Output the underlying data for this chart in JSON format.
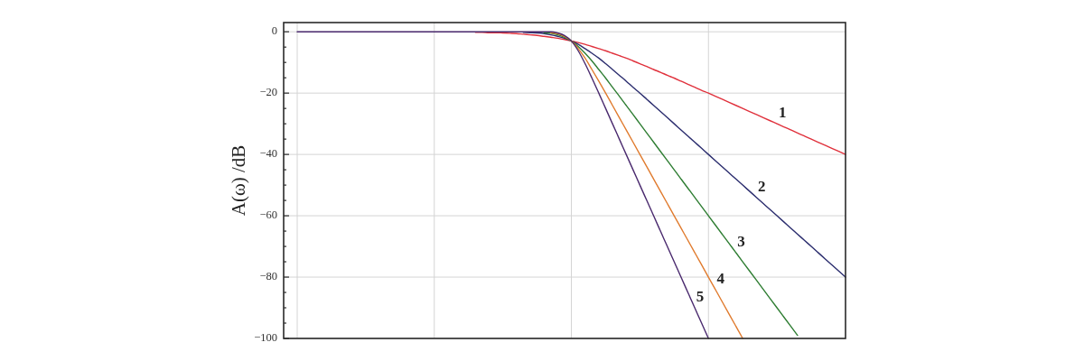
{
  "chart_data": {
    "type": "line",
    "ylabel": "A(ω) /dB",
    "categories": [
      null,
      null,
      null,
      null,
      null,
      null,
      null,
      null,
      null,
      null,
      null,
      null,
      null,
      null,
      null,
      null,
      null,
      null,
      null,
      null,
      null,
      null,
      null,
      null,
      null,
      null,
      null,
      null,
      null,
      null,
      null,
      null,
      null,
      null,
      null,
      null,
      null,
      null,
      null,
      null,
      null,
      null,
      null,
      null,
      null,
      null,
      null,
      null,
      null,
      null,
      null,
      null,
      null,
      null,
      null,
      null,
      null,
      null,
      null,
      null,
      null,
      null,
      null,
      null,
      null,
      null,
      null,
      null,
      null,
      null,
      null,
      null,
      null,
      null,
      null,
      null,
      null,
      null,
      null,
      null,
      null
    ],
    "ylim": [
      -100,
      3
    ],
    "yticks": [
      0,
      {
        "value": -5,
        "label": null
      },
      {
        "value": -10,
        "label": null
      },
      {
        "value": -15,
        "label": null
      },
      -20,
      {
        "value": -25,
        "label": null
      },
      {
        "value": -30,
        "label": null
      },
      {
        "value": -35,
        "label": null
      },
      -40,
      {
        "value": -45,
        "label": null
      },
      {
        "value": -50,
        "label": null
      },
      {
        "value": -55,
        "label": null
      },
      -60,
      {
        "value": -65,
        "label": null
      },
      {
        "value": -70,
        "label": null
      },
      {
        "value": -75,
        "label": null
      },
      -80,
      {
        "value": -85,
        "label": null
      },
      {
        "value": -90,
        "label": null
      },
      {
        "value": -95,
        "label": null
      },
      -100
    ],
    "grid": true,
    "series": [
      {
        "name": "1",
        "color": "#e0313c",
        "values": [
          null,
          null,
          null,
          null,
          null,
          null,
          null,
          null,
          null,
          null,
          null,
          null,
          null,
          null,
          null,
          null,
          null,
          null,
          null,
          null,
          null,
          null,
          null,
          null,
          null,
          null,
          -0.2,
          -0.2,
          -0.3,
          -0.3,
          -0.4,
          -0.5,
          -0.6,
          -0.8,
          -1,
          -1.2,
          -1.5,
          -1.8,
          -2.1,
          -2.5,
          -3,
          -3.5,
          -4.1,
          -4.8,
          -5.5,
          -6.2,
          -7,
          -7.8,
          -8.6,
          -9.5,
          -10.4,
          -11.3,
          -12.3,
          -13.2,
          -14.2,
          -15.1,
          -16.1,
          -17.1,
          -18.1,
          -19.1,
          -20,
          -21,
          -22,
          -23,
          -24,
          -25,
          -26,
          -27,
          -28,
          -29,
          -30,
          -31,
          -32,
          -33,
          -34,
          -35,
          -36,
          -37,
          -38,
          -39,
          -40
        ]
      },
      {
        "name": "2",
        "color": "#2b2d6e",
        "values": [
          null,
          null,
          null,
          null,
          null,
          null,
          null,
          null,
          null,
          null,
          null,
          null,
          null,
          null,
          null,
          null,
          null,
          null,
          null,
          null,
          null,
          null,
          null,
          null,
          null,
          null,
          null,
          null,
          null,
          null,
          null,
          null,
          null,
          -0.2,
          -0.3,
          -0.4,
          -0.6,
          -1,
          -1.5,
          -2.1,
          -3,
          -4.1,
          -5.5,
          -7,
          -8.6,
          -10.4,
          -12.3,
          -14.2,
          -16.1,
          -18.1,
          -20,
          -22,
          -24,
          -26,
          -28,
          -30,
          -32,
          -34,
          -36,
          -38,
          -40,
          -42,
          -44,
          -46,
          -48,
          -50,
          -52,
          -54,
          -56,
          -58,
          -60,
          -62,
          -64,
          -66,
          -68,
          -70,
          -72,
          -74,
          -76,
          -78,
          -80
        ]
      },
      {
        "name": "3",
        "color": "#2e7d32",
        "values": [
          null,
          null,
          null,
          null,
          null,
          null,
          null,
          null,
          null,
          null,
          null,
          null,
          null,
          null,
          null,
          null,
          null,
          null,
          null,
          null,
          null,
          null,
          null,
          null,
          null,
          null,
          null,
          null,
          null,
          null,
          null,
          null,
          null,
          null,
          null,
          null,
          -0.3,
          -0.5,
          -1,
          -1.8,
          -3,
          -4.8,
          -7,
          -9.5,
          -12.3,
          -15.1,
          -18.1,
          -21,
          -24,
          -27,
          -30,
          -33,
          -36,
          -39,
          -42,
          -45,
          -48,
          -51,
          -54,
          -57,
          -60,
          -63,
          -66,
          -69,
          -72,
          -75,
          -78,
          -81,
          -84,
          -87,
          -90,
          -93,
          -96,
          -99,
          null,
          null,
          null,
          null,
          null,
          null,
          null
        ]
      },
      {
        "name": "4",
        "color": "#e07b2e",
        "values": [
          null,
          null,
          null,
          null,
          null,
          null,
          null,
          null,
          null,
          null,
          null,
          null,
          null,
          null,
          null,
          null,
          null,
          null,
          null,
          null,
          null,
          null,
          null,
          null,
          null,
          null,
          null,
          null,
          null,
          null,
          null,
          null,
          null,
          null,
          null,
          null,
          null,
          -0.3,
          -0.6,
          -1.5,
          -3,
          -5.5,
          -8.6,
          -12.3,
          -16.1,
          -20,
          -24,
          -28,
          -32,
          -36,
          -40,
          -44,
          -48,
          -52,
          -56,
          -60,
          -64,
          -68,
          -72,
          -76,
          -80,
          -84,
          -88,
          -92,
          -96,
          -100,
          null,
          null,
          null,
          null,
          null,
          null,
          null,
          null,
          null,
          null,
          null,
          null,
          null,
          null,
          null
        ]
      },
      {
        "name": "5",
        "color": "#4a2a6e",
        "values": [
          0,
          0,
          0,
          0,
          0,
          0,
          0,
          0,
          0,
          0,
          0,
          0,
          0,
          0,
          0,
          0,
          0,
          0,
          0,
          0,
          0,
          0,
          0,
          0,
          0,
          0,
          0,
          0,
          0,
          0,
          0,
          0,
          0,
          0,
          0,
          0,
          0,
          0,
          -0.4,
          -1.2,
          -3,
          -6.2,
          -10.4,
          -15.1,
          -20,
          -25,
          -30,
          -35,
          -40,
          -45,
          -50,
          -55,
          -60,
          -65,
          -70,
          -75,
          -80,
          -85,
          -90,
          -95,
          -100,
          null,
          null,
          null,
          null,
          null,
          null,
          null,
          null,
          null,
          null,
          null,
          null,
          null,
          null,
          null,
          null,
          null,
          null,
          null,
          null
        ]
      }
    ]
  }
}
